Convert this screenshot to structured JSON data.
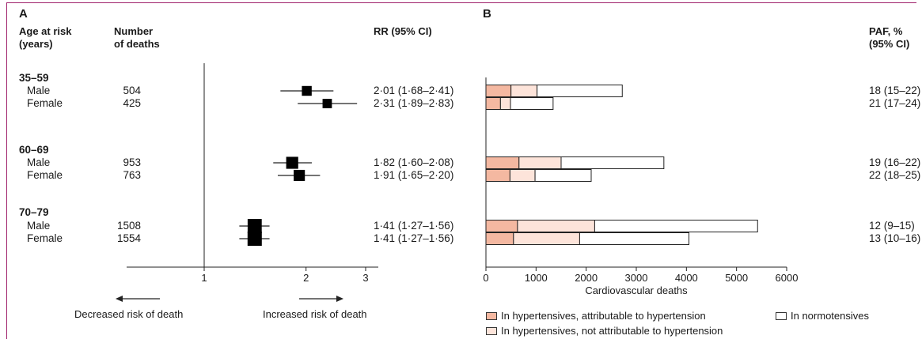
{
  "panelA": {
    "letter": "A",
    "headers": {
      "age_line1": "Age at risk",
      "age_line2": "(years)",
      "deaths_line1": "Number",
      "deaths_line2": "of deaths",
      "rr": "RR (95% CI)"
    },
    "decreased_label": "Decreased risk of death",
    "increased_label": "Increased risk of death"
  },
  "panelB": {
    "letter": "B",
    "paf_line1": "PAF, %",
    "paf_line2": "(95% CI)"
  },
  "groups": [
    {
      "label": "35–59",
      "rows": [
        {
          "sex": "Male",
          "deaths": "504",
          "rr_text": "2·01 (1·68–2·41)",
          "paf_text": "18 (15–22)"
        },
        {
          "sex": "Female",
          "deaths": "425",
          "rr_text": "2·31 (1·89–2·83)",
          "paf_text": "21 (17–24)"
        }
      ]
    },
    {
      "label": "60–69",
      "rows": [
        {
          "sex": "Male",
          "deaths": "953",
          "rr_text": "1·82 (1·60–2·08)",
          "paf_text": "19 (16–22)"
        },
        {
          "sex": "Female",
          "deaths": "763",
          "rr_text": "1·91 (1·65–2·20)",
          "paf_text": "22 (18–25)"
        }
      ]
    },
    {
      "label": "70–79",
      "rows": [
        {
          "sex": "Male",
          "deaths": "1508",
          "rr_text": "1·41 (1·27–1·56)",
          "paf_text": "12 (9–15)"
        },
        {
          "sex": "Female",
          "deaths": "1554",
          "rr_text": "1·41 (1·27–1·56)",
          "paf_text": "13 (10–16)"
        }
      ]
    }
  ],
  "chart_data": [
    {
      "type": "scatter",
      "subtype": "forest-plot",
      "title": "",
      "xscale": "log",
      "xlim": [
        0.7,
        3.2
      ],
      "xticks": [
        1,
        2,
        3
      ],
      "reference_line": 1,
      "categories": [
        "35–59 Male",
        "35–59 Female",
        "60–69 Male",
        "60–69 Female",
        "70–79 Male",
        "70–79 Female"
      ],
      "rr": [
        2.01,
        2.31,
        1.82,
        1.91,
        1.41,
        1.41
      ],
      "ci_low": [
        1.68,
        1.89,
        1.6,
        1.65,
        1.27,
        1.27
      ],
      "ci_high": [
        2.41,
        2.83,
        2.08,
        2.2,
        1.56,
        1.56
      ],
      "deaths": [
        504,
        425,
        953,
        763,
        1508,
        1554
      ]
    },
    {
      "type": "bar",
      "orientation": "horizontal",
      "stacked": true,
      "xlabel": "Cardiovascular deaths",
      "xlim": [
        0,
        6000
      ],
      "xticks": [
        0,
        1000,
        2000,
        3000,
        4000,
        5000,
        6000
      ],
      "categories": [
        "35–59 Male",
        "35–59 Female",
        "60–69 Male",
        "60–69 Female",
        "70–79 Male",
        "70–79 Female"
      ],
      "series": [
        {
          "name": "In hypertensives, attributable to hypertension",
          "color": "#f4b8a1",
          "values": [
            500,
            290,
            660,
            480,
            630,
            550
          ]
        },
        {
          "name": "In hypertensives, not attributable to hypertension",
          "color": "#fde4da",
          "values": [
            520,
            200,
            840,
            500,
            1540,
            1320
          ]
        },
        {
          "name": "In normotensives",
          "color": "#ffffff",
          "values": [
            1700,
            850,
            2050,
            1120,
            3250,
            2180
          ]
        }
      ]
    }
  ]
}
